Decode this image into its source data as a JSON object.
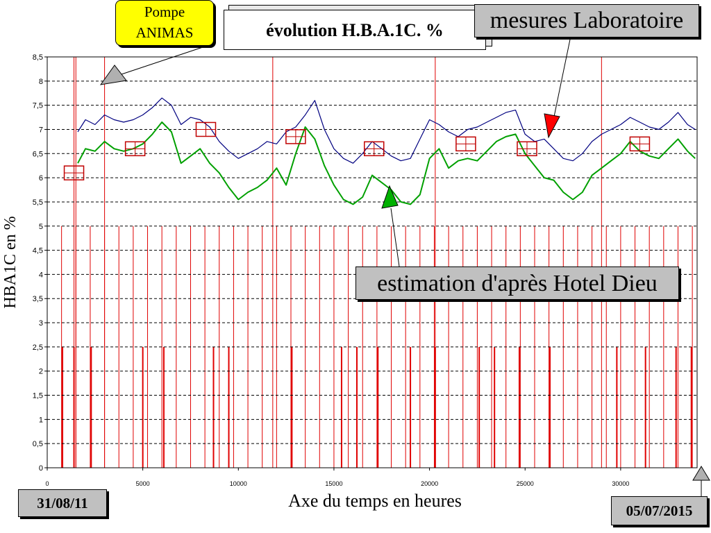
{
  "chart_data": {
    "type": "line",
    "title": "évolution H.B.A.1C. %",
    "xlabel": "Axe du temps en heures",
    "ylabel": "HBA1C en %",
    "xlim": [
      0,
      34000
    ],
    "ylim": [
      0,
      8.5
    ],
    "x_ticks": [
      0,
      5000,
      10000,
      15000,
      20000,
      25000,
      30000
    ],
    "x_tick_labels": [
      "0",
      "5000",
      "10000",
      "15000",
      "20000",
      "25000",
      "30000"
    ],
    "y_ticks": [
      0,
      0.5,
      1,
      1.5,
      2,
      2.5,
      3,
      3.5,
      4,
      4.5,
      5,
      5.5,
      6,
      6.5,
      7,
      7.5,
      8,
      8.5
    ],
    "y_tick_labels": [
      "0",
      "0,5",
      "1",
      "1,5",
      "2",
      "2,5",
      "3",
      "3,5",
      "4",
      "4,5",
      "5",
      "5,5",
      "6",
      "6,5",
      "7",
      "7,5",
      "8",
      "8,5"
    ],
    "grid": "horizontal-dashed",
    "series": [
      {
        "name": "mesures Laboratoire",
        "color": "#000080",
        "x": [
          1600,
          2000,
          2500,
          3000,
          3500,
          4000,
          4500,
          5000,
          5500,
          6000,
          6500,
          7000,
          7500,
          8000,
          8500,
          9000,
          9500,
          10000,
          10500,
          11000,
          11500,
          12000,
          12500,
          13000,
          13500,
          14000,
          14500,
          15000,
          15500,
          16000,
          16500,
          17000,
          17500,
          18000,
          18500,
          19000,
          19500,
          20000,
          20500,
          21000,
          21500,
          22000,
          22500,
          23000,
          23500,
          24000,
          24500,
          25000,
          25500,
          26000,
          26500,
          27000,
          27500,
          28000,
          28500,
          29000,
          29500,
          30000,
          30500,
          31000,
          31500,
          32000,
          32500,
          33000,
          33500,
          33900
        ],
        "values": [
          6.95,
          7.2,
          7.1,
          7.3,
          7.2,
          7.15,
          7.2,
          7.3,
          7.45,
          7.65,
          7.5,
          7.1,
          7.25,
          7.2,
          7.05,
          6.75,
          6.55,
          6.4,
          6.5,
          6.6,
          6.75,
          6.7,
          6.95,
          7.05,
          7.3,
          7.6,
          7.0,
          6.6,
          6.4,
          6.3,
          6.5,
          6.75,
          6.6,
          6.45,
          6.35,
          6.4,
          6.8,
          7.2,
          7.1,
          6.95,
          6.85,
          7.0,
          7.05,
          7.15,
          7.25,
          7.35,
          7.4,
          6.9,
          6.75,
          6.8,
          6.6,
          6.4,
          6.35,
          6.5,
          6.75,
          6.9,
          7.0,
          7.1,
          7.25,
          7.15,
          7.05,
          7.0,
          7.15,
          7.35,
          7.1,
          7.0
        ]
      },
      {
        "name": "estimation d'après Hotel Dieu",
        "color": "#00a000",
        "x": [
          1600,
          2000,
          2500,
          3000,
          3500,
          4000,
          4500,
          5000,
          5500,
          6000,
          6500,
          7000,
          7500,
          8000,
          8500,
          9000,
          9500,
          10000,
          10500,
          11000,
          11500,
          12000,
          12500,
          13000,
          13500,
          14000,
          14500,
          15000,
          15500,
          16000,
          16500,
          17000,
          17500,
          18000,
          18500,
          19000,
          19500,
          20000,
          20500,
          21000,
          21500,
          22000,
          22500,
          23000,
          23500,
          24000,
          24500,
          25000,
          25500,
          26000,
          26500,
          27000,
          27500,
          28000,
          28500,
          29000,
          29500,
          30000,
          30500,
          31000,
          31500,
          32000,
          32500,
          33000,
          33500,
          33900
        ],
        "values": [
          6.3,
          6.6,
          6.55,
          6.75,
          6.6,
          6.55,
          6.6,
          6.7,
          6.9,
          7.15,
          6.95,
          6.3,
          6.45,
          6.6,
          6.3,
          6.1,
          5.8,
          5.55,
          5.7,
          5.8,
          5.95,
          6.2,
          5.85,
          6.5,
          7.05,
          6.8,
          6.25,
          5.85,
          5.55,
          5.45,
          5.6,
          6.05,
          5.9,
          5.75,
          5.5,
          5.45,
          5.65,
          6.4,
          6.6,
          6.2,
          6.35,
          6.4,
          6.35,
          6.55,
          6.75,
          6.85,
          6.9,
          6.5,
          6.25,
          6.0,
          5.95,
          5.7,
          5.55,
          5.7,
          6.05,
          6.2,
          6.35,
          6.5,
          6.75,
          6.55,
          6.45,
          6.4,
          6.6,
          6.8,
          6.55,
          6.4
        ]
      }
    ],
    "lab_measurements": {
      "x": [
        1400,
        4600,
        8300,
        13000,
        17100,
        21900,
        25100,
        31000
      ],
      "values": [
        6.1,
        6.6,
        7.0,
        6.85,
        6.6,
        6.7,
        6.6,
        6.7
      ]
    },
    "event_lines_full": [
      1400,
      1500,
      3000,
      11800,
      20300,
      29000
    ],
    "event_lines_5": [
      0,
      750,
      1500,
      2250,
      3000,
      3750,
      4500,
      5250,
      6000,
      6750,
      7500,
      8250,
      9000,
      9750,
      10500,
      11250,
      12000,
      12750,
      13500,
      14250,
      15000,
      15750,
      16500,
      17250,
      18000,
      18750,
      19500,
      20250,
      21000,
      21750,
      22500,
      23250,
      24000,
      24750,
      25500,
      26250,
      27000,
      27750,
      28500,
      29250,
      30000,
      30750,
      31500,
      32250,
      33000,
      33750
    ],
    "event_lines_2_5": [
      800,
      1400,
      2300,
      5000,
      6100,
      8700,
      9500,
      12800,
      15400,
      16200,
      17300,
      19000,
      20300,
      22600,
      23400,
      24700,
      26300,
      29800,
      31300,
      32900,
      33700
    ]
  },
  "annotations": {
    "pompe": [
      "Pompe",
      "ANIMAS"
    ],
    "labo": "mesures Laboratoire",
    "estimation": "estimation d'après Hotel Dieu",
    "date_start": "31/08/11",
    "date_end": "05/07/2015"
  },
  "colors": {
    "event_line": "#e00000",
    "measure_box": "#c00000",
    "callout_gray": "#c0c0c0",
    "callout_yellow": "#ffff00"
  }
}
